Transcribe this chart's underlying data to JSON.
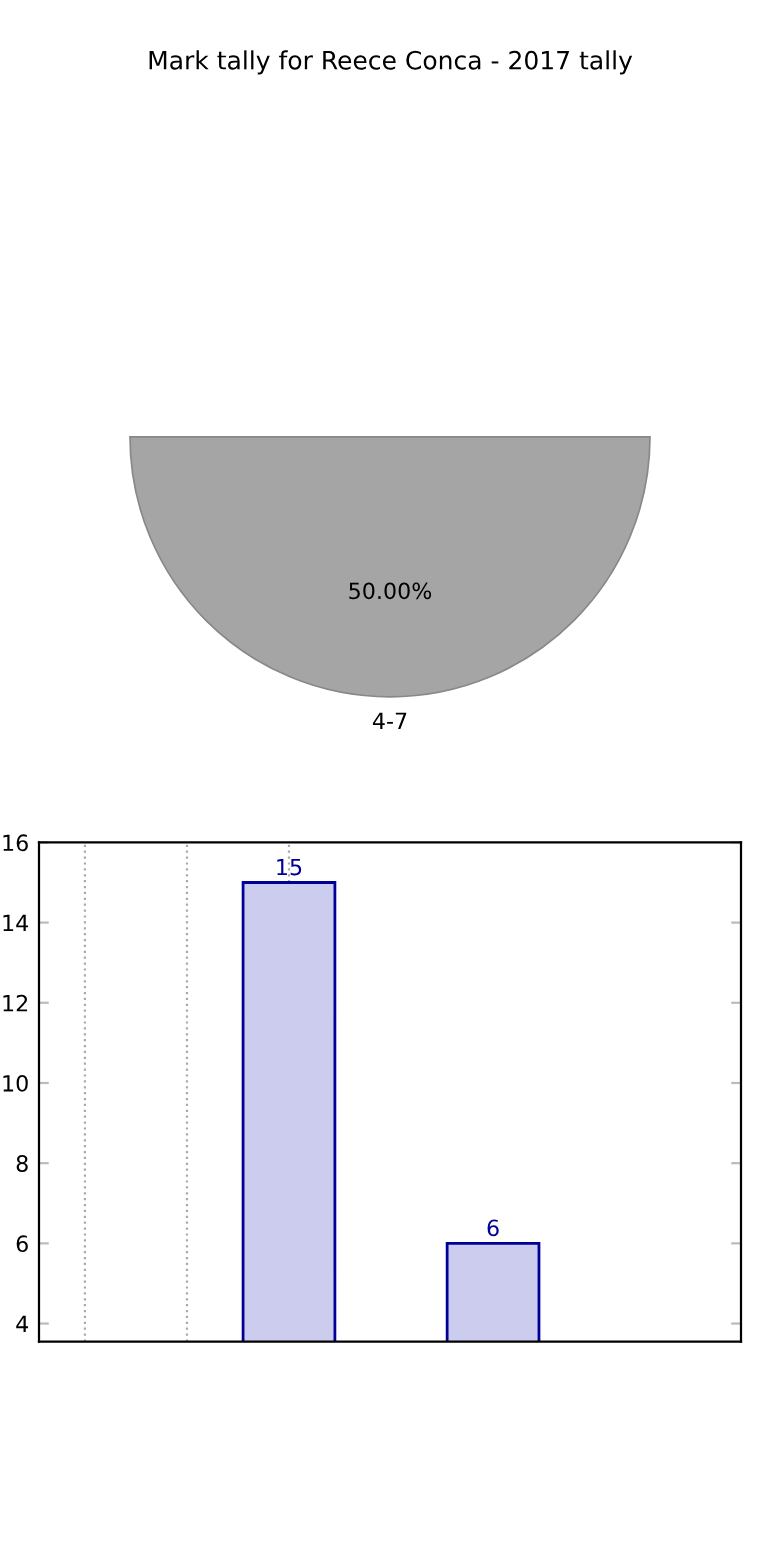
{
  "chart_data": [
    {
      "type": "pie",
      "title": "Mark tally for Reece Conca - 2017 tally",
      "categories": [
        "4-7"
      ],
      "values": [
        50
      ],
      "colors": [
        "#a5a5a5"
      ],
      "value_labels": [
        "50.00%"
      ]
    },
    {
      "type": "bar",
      "categories": [
        null,
        null
      ],
      "values": [
        15,
        6
      ],
      "color": "#ccccee",
      "ylim": [
        3.55,
        16
      ],
      "yticks": [
        4,
        6,
        8,
        10,
        12,
        14,
        16
      ],
      "grid": "x",
      "data_labels": true,
      "tick_labels": "y"
    }
  ]
}
